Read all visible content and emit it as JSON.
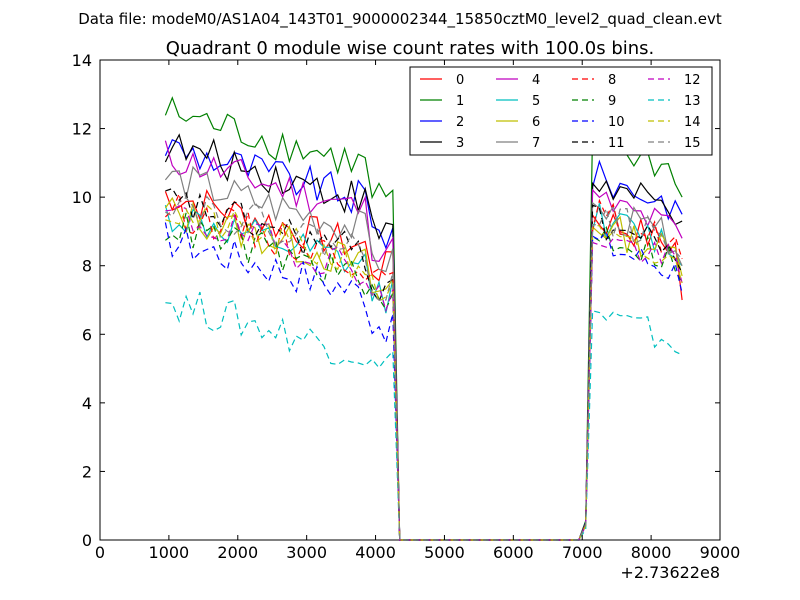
{
  "chart_data": {
    "type": "line",
    "suptitle": "Data file: modeM0/AS1A04_143T01_9000002344_15850cztM0_level2_quad_clean.evt",
    "title": "Quadrant 0 module wise count rates with 100.0s bins.",
    "xlabel": "",
    "ylabel": "",
    "x_offset_label": "+2.73622e8",
    "xlim": [
      0,
      9000
    ],
    "ylim": [
      0,
      14
    ],
    "xticks": [
      0,
      1000,
      2000,
      3000,
      4000,
      5000,
      6000,
      7000,
      8000,
      9000
    ],
    "yticks": [
      0,
      2,
      4,
      6,
      8,
      10,
      12,
      14
    ],
    "grid": false,
    "legend": {
      "placement": "top-right",
      "columns": 4
    },
    "x": [
      950,
      1050,
      1150,
      1250,
      1350,
      1450,
      1550,
      1650,
      1750,
      1850,
      1950,
      2050,
      2150,
      2250,
      2350,
      2450,
      2550,
      2650,
      2750,
      2850,
      2950,
      3050,
      3150,
      3250,
      3350,
      3450,
      3550,
      3650,
      3750,
      3850,
      3950,
      4050,
      4150,
      4250,
      4350,
      4450,
      4550,
      4650,
      4750,
      4850,
      4950,
      5050,
      5150,
      5250,
      5350,
      5450,
      5550,
      5650,
      5750,
      5850,
      5950,
      6050,
      6150,
      6250,
      6350,
      6450,
      6550,
      6650,
      6750,
      6850,
      6950,
      7050,
      7150,
      7250,
      7350,
      7450,
      7550,
      7650,
      7750,
      7850,
      7950,
      8050,
      8150,
      8250,
      8350,
      8450
    ],
    "segments": {
      "first": {
        "start_index": 0,
        "points": 34
      },
      "gap_zero": {
        "start_index": 34,
        "points": 27
      },
      "second": {
        "start_index": 61,
        "points": 15
      }
    },
    "series": [
      {
        "name": "0",
        "color": "#ff0000",
        "style": "solid",
        "first_mean": 9.2,
        "first_end": 8.4,
        "second_mean": 9.0,
        "second_end": 7.0
      },
      {
        "name": "1",
        "color": "#008000",
        "style": "solid",
        "first_mean": 11.6,
        "first_end": 10.2,
        "second_mean": 11.2,
        "second_end": 10.0
      },
      {
        "name": "2",
        "color": "#0000ff",
        "style": "solid",
        "first_mean": 10.6,
        "first_end": 9.1,
        "second_mean": 10.2,
        "second_end": 9.5
      },
      {
        "name": "3",
        "color": "#000000",
        "style": "solid",
        "first_mean": 10.6,
        "first_end": 9.2,
        "second_mean": 10.0,
        "second_end": 9.3
      },
      {
        "name": "4",
        "color": "#bf00bf",
        "style": "solid",
        "first_mean": 10.3,
        "first_end": 8.8,
        "second_mean": 9.5,
        "second_end": 8.8
      },
      {
        "name": "5",
        "color": "#00bfbf",
        "style": "solid",
        "first_mean": 8.6,
        "first_end": 7.6,
        "second_mean": 9.0,
        "second_end": 8.0
      },
      {
        "name": "6",
        "color": "#bfbf00",
        "style": "solid",
        "first_mean": 8.7,
        "first_end": 7.6,
        "second_mean": 8.8,
        "second_end": 7.7
      },
      {
        "name": "7",
        "color": "#808080",
        "style": "solid",
        "first_mean": 9.7,
        "first_end": 8.5,
        "second_mean": 9.2,
        "second_end": 8.0
      },
      {
        "name": "8",
        "color": "#ff0000",
        "style": "dashed",
        "first_mean": 8.8,
        "first_end": 7.8,
        "second_mean": 9.1,
        "second_end": 8.2
      },
      {
        "name": "9",
        "color": "#008000",
        "style": "dashed",
        "first_mean": 8.3,
        "first_end": 7.2,
        "second_mean": 8.6,
        "second_end": 7.5
      },
      {
        "name": "10",
        "color": "#0000ff",
        "style": "dashed",
        "first_mean": 7.9,
        "first_end": 6.6,
        "second_mean": 8.3,
        "second_end": 7.2
      },
      {
        "name": "11",
        "color": "#000000",
        "style": "dashed",
        "first_mean": 9.0,
        "first_end": 7.6,
        "second_mean": 8.9,
        "second_end": 7.8
      },
      {
        "name": "12",
        "color": "#bf00bf",
        "style": "dashed",
        "first_mean": 8.6,
        "first_end": 7.3,
        "second_mean": 8.5,
        "second_end": 7.5
      },
      {
        "name": "13",
        "color": "#00bfbf",
        "style": "dashed",
        "first_mean": 6.1,
        "first_end": 5.5,
        "second_mean": 6.2,
        "second_end": 5.4
      },
      {
        "name": "14",
        "color": "#bfbf00",
        "style": "dashed",
        "first_mean": 8.7,
        "first_end": 7.5,
        "second_mean": 8.4,
        "second_end": 7.5
      },
      {
        "name": "15",
        "color": "#808080",
        "style": "dashed",
        "first_mean": 9.1,
        "first_end": 7.8,
        "second_mean": 9.1,
        "second_end": 8.2
      }
    ]
  }
}
